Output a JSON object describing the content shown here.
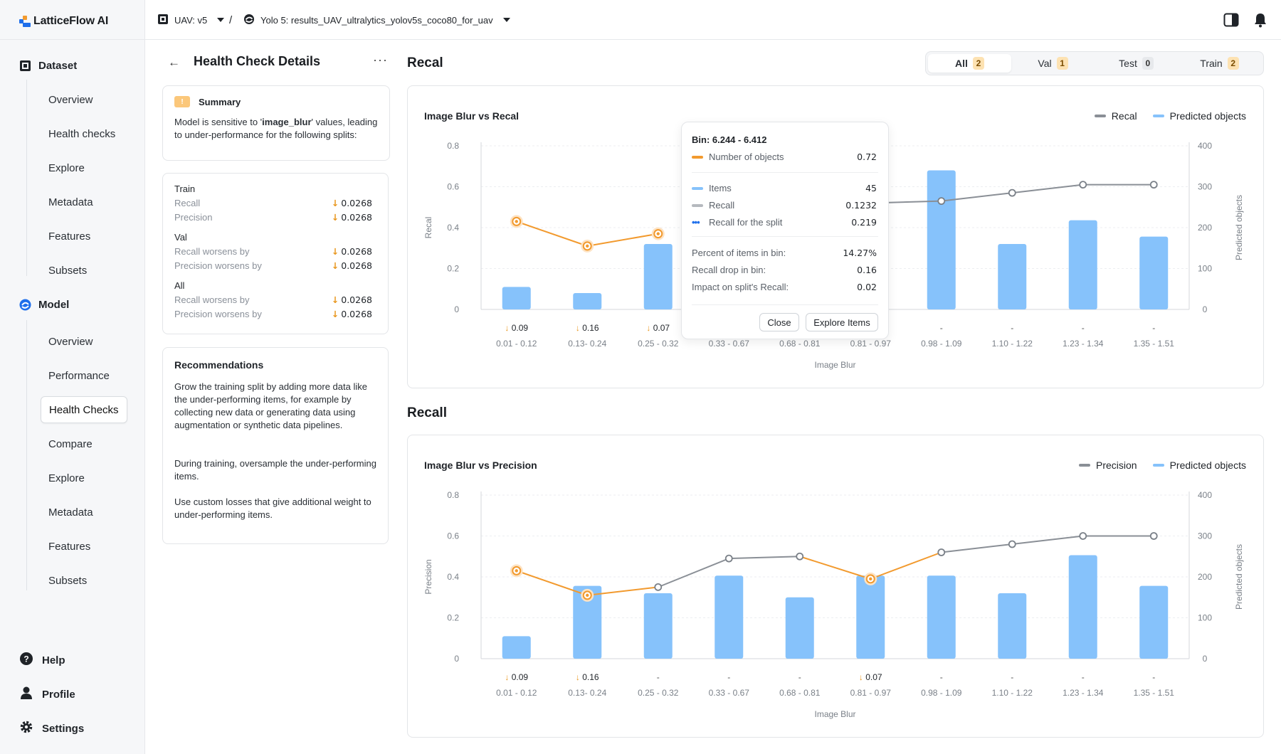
{
  "app": {
    "name": "LatticeFlow AI"
  },
  "sidebar": {
    "dataset_label": "Dataset",
    "dataset_items": [
      "Overview",
      "Health checks",
      "Explore",
      "Metadata",
      "Features",
      "Subsets"
    ],
    "model_label": "Model",
    "model_items": [
      "Overview",
      "Performance",
      "Health Checks",
      "Compare",
      "Explore",
      "Metadata",
      "Features",
      "Subsets"
    ],
    "footer": {
      "help": "Help",
      "profile": "Profile",
      "settings": "Settings"
    }
  },
  "topbar": {
    "dataset": "UAV: v5",
    "separator": "/",
    "model": "Yolo 5: results_UAV_ultralytics_yolov5s_coco80_for_uav"
  },
  "panel": {
    "title": "Health Check Details",
    "summary": {
      "heading": "Summary",
      "pre": "Model is sensitive to '",
      "keyword": "image_blur",
      "post": "' values, leading to under-performance for the following splits:"
    },
    "splits": [
      {
        "name": "Train",
        "rows": [
          {
            "label": "Recall",
            "value": "0.0268"
          },
          {
            "label": "Precision",
            "value": "0.0268"
          }
        ]
      },
      {
        "name": "Val",
        "rows": [
          {
            "label": "Recall worsens by",
            "value": "0.0268"
          },
          {
            "label": "Precision worsens by",
            "value": "0.0268"
          }
        ]
      },
      {
        "name": "All",
        "rows": [
          {
            "label": "Recall worsens by",
            "value": "0.0268"
          },
          {
            "label": "Precision worsens by",
            "value": "0.0268"
          }
        ]
      }
    ],
    "recommendations": {
      "heading": "Recommendations",
      "paragraphs": [
        "Grow the training split by adding more data like the under-performing items, for example by collecting new data or generating data using augmentation or synthetic data pipelines.",
        "During training, oversample the under-performing items.",
        "Use custom losses that give additional weight to under-performing items."
      ]
    }
  },
  "section1_title": "Recal",
  "section2_title": "Recall",
  "tabs": [
    {
      "label": "All",
      "count": "2",
      "active": true
    },
    {
      "label": "Val",
      "count": "1",
      "active": false
    },
    {
      "label": "Test",
      "count": "0",
      "active": false
    },
    {
      "label": "Train",
      "count": "2",
      "active": false
    }
  ],
  "colors": {
    "bar": "#86c2fb",
    "line": "#8a8f96",
    "highlight": "#f29a2e",
    "accent_down": "#e8961d"
  },
  "chart_data": [
    {
      "type": "bar+line",
      "title": "Image Blur vs Recal",
      "xlabel": "Image Blur",
      "ylabel": "Recal",
      "y2label": "Predicted objects",
      "legend": [
        "Recal",
        "Predicted objects"
      ],
      "categories": [
        "0.01 - 0.12",
        "0.13- 0.24",
        "0.25 - 0.32",
        "0.33 - 0.67",
        "0.68 - 0.81",
        "0.81 - 0.97",
        "0.98 - 1.09",
        "1.10 - 1.22",
        "1.23 - 1.34",
        "1.35 - 1.51"
      ],
      "drops": [
        "0.09",
        "0.16",
        "0.07",
        "",
        "",
        "",
        "-",
        "-",
        "-",
        "-"
      ],
      "bars": [
        55,
        40,
        160,
        null,
        null,
        null,
        340,
        160,
        218,
        178
      ],
      "line": [
        0.43,
        0.31,
        0.37,
        null,
        null,
        0.52,
        0.53,
        0.57,
        0.61,
        0.61
      ],
      "highlighted": [
        true,
        true,
        true,
        false,
        false,
        false,
        false,
        false,
        false,
        false
      ],
      "ylim": [
        0,
        0.8
      ],
      "y2lim": [
        0,
        400
      ],
      "yticks": [
        "0",
        "0.2",
        "0.4",
        "0.6",
        "0.8"
      ],
      "y2ticks": [
        "0",
        "100",
        "200",
        "300",
        "400"
      ]
    },
    {
      "type": "bar+line",
      "title": "Image Blur vs Precision",
      "xlabel": "Image Blur",
      "ylabel": "Precision",
      "y2label": "Predicted objects",
      "legend": [
        "Precision",
        "Predicted objects"
      ],
      "categories": [
        "0.01 - 0.12",
        "0.13- 0.24",
        "0.25 - 0.32",
        "0.33 - 0.67",
        "0.68 - 0.81",
        "0.81 - 0.97",
        "0.98 - 1.09",
        "1.10 - 1.22",
        "1.23 - 1.34",
        "1.35 - 1.51"
      ],
      "drops": [
        "0.09",
        "0.16",
        "-",
        "-",
        "-",
        "0.07",
        "-",
        "-",
        "-",
        "-"
      ],
      "bars": [
        55,
        178,
        160,
        203,
        150,
        203,
        203,
        160,
        253,
        178
      ],
      "line": [
        0.43,
        0.31,
        0.35,
        0.49,
        0.5,
        0.39,
        0.52,
        0.56,
        0.6,
        0.6
      ],
      "highlighted": [
        true,
        true,
        false,
        false,
        false,
        true,
        false,
        false,
        false,
        false
      ],
      "ylim": [
        0,
        0.8
      ],
      "y2lim": [
        0,
        400
      ],
      "yticks": [
        "0",
        "0.2",
        "0.4",
        "0.6",
        "0.8"
      ],
      "y2ticks": [
        "0",
        "100",
        "200",
        "300",
        "400"
      ]
    }
  ],
  "tooltip": {
    "bin": "Bin: 6.244 - 6.412",
    "rows1": [
      {
        "label": "Number of objects",
        "value": "0.72"
      }
    ],
    "rows2": [
      {
        "label": "Items",
        "value": "45"
      },
      {
        "label": "Recall",
        "value": "0.1232"
      },
      {
        "label": "Recall for the split",
        "value": "0.219"
      }
    ],
    "rows3": [
      {
        "label": "Percent of items in bin:",
        "value": "14.27%"
      },
      {
        "label": "Recall drop in bin:",
        "value": "0.16"
      },
      {
        "label": "Impact on split's Recall:",
        "value": "0.02"
      }
    ],
    "close_label": "Close",
    "explore_label": "Explore Items"
  }
}
